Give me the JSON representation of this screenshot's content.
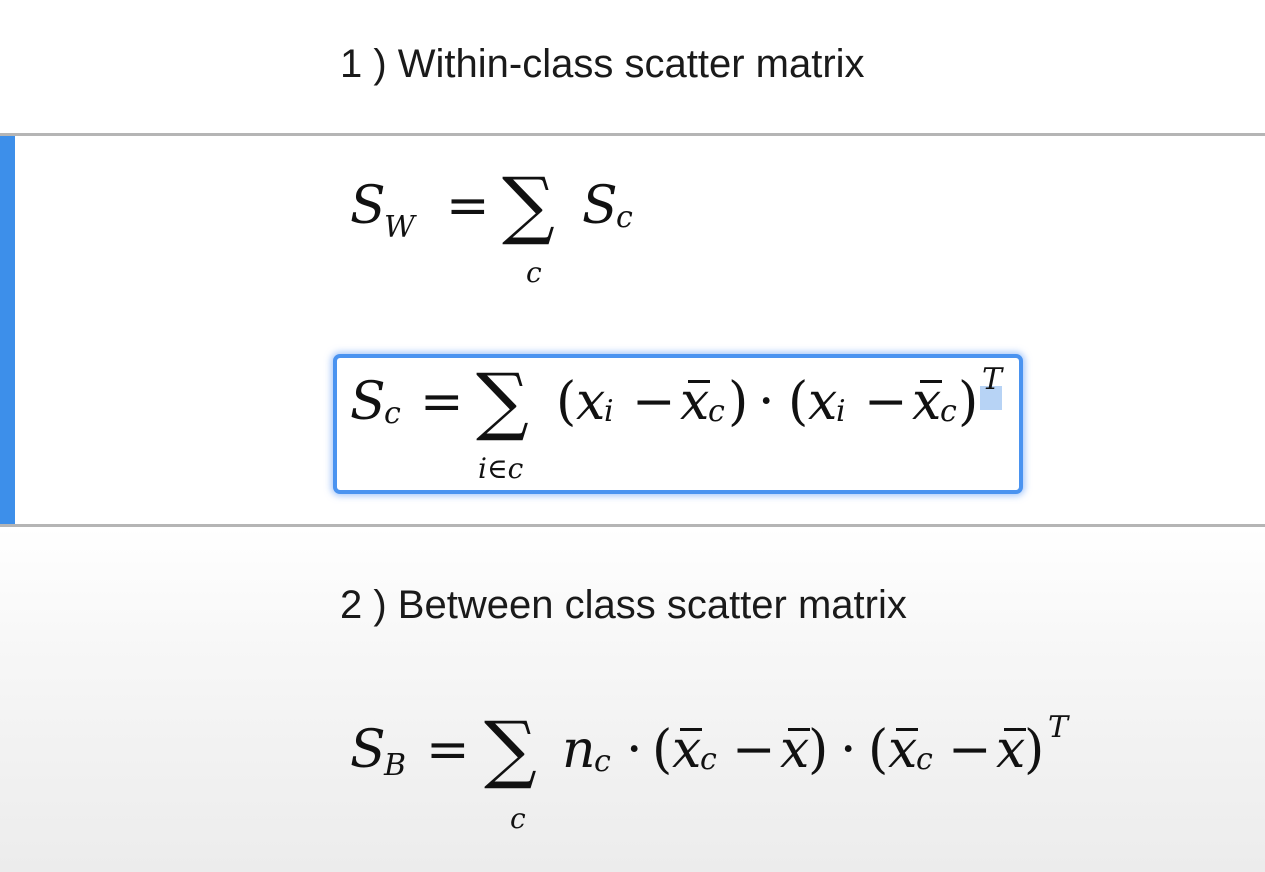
{
  "sections": [
    {
      "heading": "1 ) Within-class scatter matrix",
      "eq_sw": {
        "lhs": "S",
        "lhs_sub": "W",
        "equals": "=",
        "sigma": "∑",
        "sigma_under": "c",
        "rhs": "S",
        "rhs_sub": "c"
      },
      "eq_sc": {
        "lhs": "S",
        "lhs_sub": "c",
        "equals": "=",
        "sigma": "∑",
        "sigma_under": "i∈c",
        "open1": "(",
        "x1": "x",
        "x1_sub": "i",
        "minus1": "−",
        "xbar1": "x",
        "xbar1_sub": "c",
        "close1": ")",
        "dot": "·",
        "open2": "(",
        "x2": "x",
        "x2_sub": "i",
        "minus2": "−",
        "xbar2": "x",
        "xbar2_sub": "c",
        "close2": ")",
        "transpose": "T"
      }
    },
    {
      "heading": "2 ) Between class scatter matrix",
      "eq_sb": {
        "lhs": "S",
        "lhs_sub": "B",
        "equals": "=",
        "sigma": "∑",
        "sigma_under": "c",
        "n": "n",
        "n_sub": "c",
        "dot1": "·",
        "open1": "(",
        "xbar1": "x",
        "xbar1_sub": "c",
        "minus1": "−",
        "mean1": "x",
        "close1": ")",
        "dot2": "·",
        "open2": "(",
        "xbar2": "x",
        "xbar2_sub": "c",
        "minus2": "−",
        "mean2": "x",
        "close2": ")",
        "transpose": "T"
      }
    }
  ],
  "colors": {
    "cell_accent": "#3d8fea",
    "edit_border": "#4a93f0",
    "selection": "#b7d3f5"
  }
}
